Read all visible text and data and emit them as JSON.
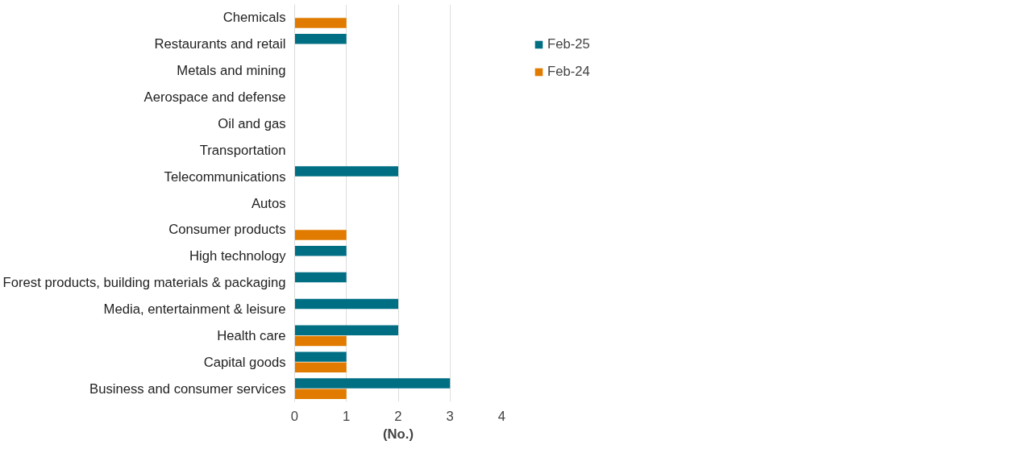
{
  "chart_data": {
    "type": "bar",
    "orientation": "horizontal",
    "xlabel": "(No.)",
    "categories": [
      "Chemicals",
      "Restaurants and retail",
      "Metals and mining",
      "Aerospace and defense",
      "Oil and gas",
      "Transportation",
      "Telecommunications",
      "Autos",
      "Consumer products",
      "High technology",
      "Forest products, building materials & packaging",
      "Media, entertainment & leisure",
      "Health care",
      "Capital goods",
      "Business and consumer services"
    ],
    "series": [
      {
        "name": "Feb-25",
        "color": "#006f84",
        "values": [
          0,
          1,
          0,
          0,
          0,
          0,
          2,
          0,
          0,
          1,
          1,
          2,
          2,
          1,
          3
        ]
      },
      {
        "name": "Feb-24",
        "color": "#e07b00",
        "values": [
          1,
          0,
          0,
          0,
          0,
          0,
          0,
          0,
          1,
          0,
          0,
          0,
          1,
          1,
          1
        ]
      }
    ],
    "xlim": [
      0,
      4
    ],
    "xticks": [
      0,
      1,
      2,
      3,
      4
    ],
    "grid": "x",
    "legend": "top right"
  }
}
